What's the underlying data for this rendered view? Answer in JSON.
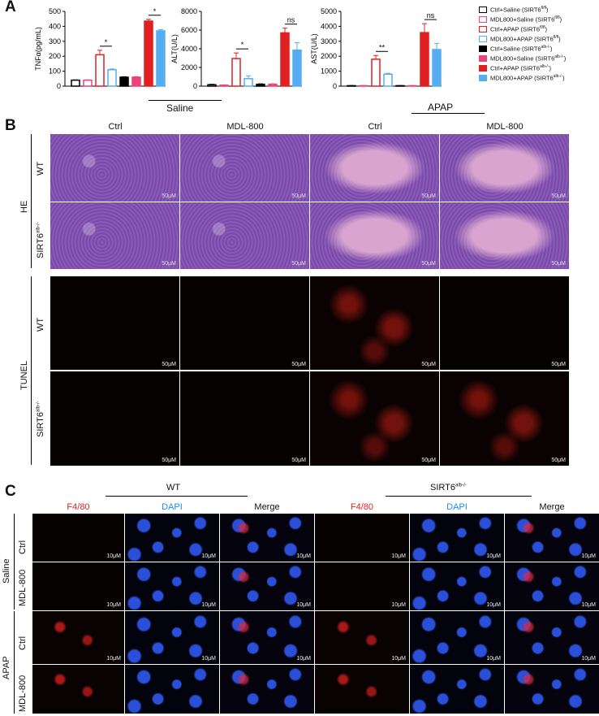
{
  "panels": {
    "a": "A",
    "b": "B",
    "c": "C"
  },
  "legend": [
    {
      "label": "Ctrl+Saline (SIRT6",
      "sup": "fl/fl",
      "tail": ")",
      "fill": "#ffffff",
      "stroke": "#000000"
    },
    {
      "label": "MDL800+Saline (SIRT6",
      "sup": "fl/fl",
      "tail": ")",
      "fill": "#ffffff",
      "stroke": "#e8457a"
    },
    {
      "label": "Ctrl+APAP (SIRT6",
      "sup": "fl/fl",
      "tail": ")",
      "fill": "#ffffff",
      "stroke": "#e02020"
    },
    {
      "label": "MDL800+APAP (SIRT6",
      "sup": "fl/fl",
      "tail": ")",
      "fill": "#ffffff",
      "stroke": "#56aef0"
    },
    {
      "label": "Ctrl+Saline (SIRT6",
      "sup": "alb-/-",
      "tail": ")",
      "fill": "#000000",
      "stroke": "#000000"
    },
    {
      "label": "MDL800+Saline (SIRT6",
      "sup": "alb-/-",
      "tail": ")",
      "fill": "#e8457a",
      "stroke": "#e8457a"
    },
    {
      "label": "Ctrl+APAP (SIRT6",
      "sup": "alb-/-",
      "tail": ")",
      "fill": "#e02020",
      "stroke": "#e02020"
    },
    {
      "label": "MDL800+APAP (SIRT6",
      "sup": "alb-/-",
      "tail": ")",
      "fill": "#56aef0",
      "stroke": "#56aef0"
    }
  ],
  "chart_data": [
    {
      "type": "bar",
      "ylabel": "TNFα(pg/mL)",
      "ylim": [
        0,
        500
      ],
      "yticks": [
        0,
        100,
        200,
        300,
        400,
        500
      ],
      "values": [
        40,
        40,
        210,
        110,
        60,
        60,
        435,
        370
      ],
      "errors": [
        2,
        2,
        30,
        5,
        3,
        3,
        12,
        8
      ],
      "sig": [
        {
          "from": 2,
          "to": 3,
          "label": "*"
        },
        {
          "from": 6,
          "to": 7,
          "label": "*"
        }
      ]
    },
    {
      "type": "bar",
      "ylabel": "ALT(U/L)",
      "ylim": [
        0,
        8000
      ],
      "yticks": [
        0,
        2000,
        4000,
        6000,
        8000
      ],
      "values": [
        150,
        100,
        2950,
        800,
        200,
        200,
        5700,
        3850
      ],
      "errors": [
        50,
        30,
        600,
        300,
        50,
        50,
        500,
        800
      ],
      "sig": [
        {
          "from": 2,
          "to": 3,
          "label": "*"
        },
        {
          "from": 6,
          "to": 7,
          "label": "ns"
        }
      ]
    },
    {
      "type": "bar",
      "ylabel": "AST(U/L)",
      "ylim": [
        0,
        5000
      ],
      "yticks": [
        0,
        1000,
        2000,
        3000,
        4000,
        5000
      ],
      "values": [
        30,
        30,
        1800,
        800,
        30,
        30,
        3580,
        2450
      ],
      "errors": [
        10,
        10,
        250,
        60,
        10,
        10,
        600,
        400
      ],
      "sig": [
        {
          "from": 2,
          "to": 3,
          "label": "**"
        },
        {
          "from": 6,
          "to": 7,
          "label": "ns"
        }
      ]
    }
  ],
  "colors": [
    "#000000",
    "#e8457a",
    "#e02020",
    "#56aef0",
    "#000000",
    "#e8457a",
    "#e02020",
    "#56aef0"
  ],
  "groups": {
    "saline": "Saline",
    "apap": "APAP"
  },
  "panel_b": {
    "cols": [
      "Ctrl",
      "MDL-800",
      "Ctrl",
      "MDL-800"
    ],
    "he": "HE",
    "tunel": "TUNEL",
    "wt": "WT",
    "ko": "SIRT6",
    "ko_sup": "alb-/-",
    "scale": "50μM"
  },
  "panel_c": {
    "wt": "WT",
    "ko": "SIRT6",
    "ko_sup": "alb-/-",
    "f480": "F4/80",
    "dapi": "DAPI",
    "merge": "Merge",
    "saline": "Saline",
    "apap": "APAP",
    "ctrl": "Ctrl",
    "mdl": "MDL-800",
    "scale": "10μM"
  }
}
